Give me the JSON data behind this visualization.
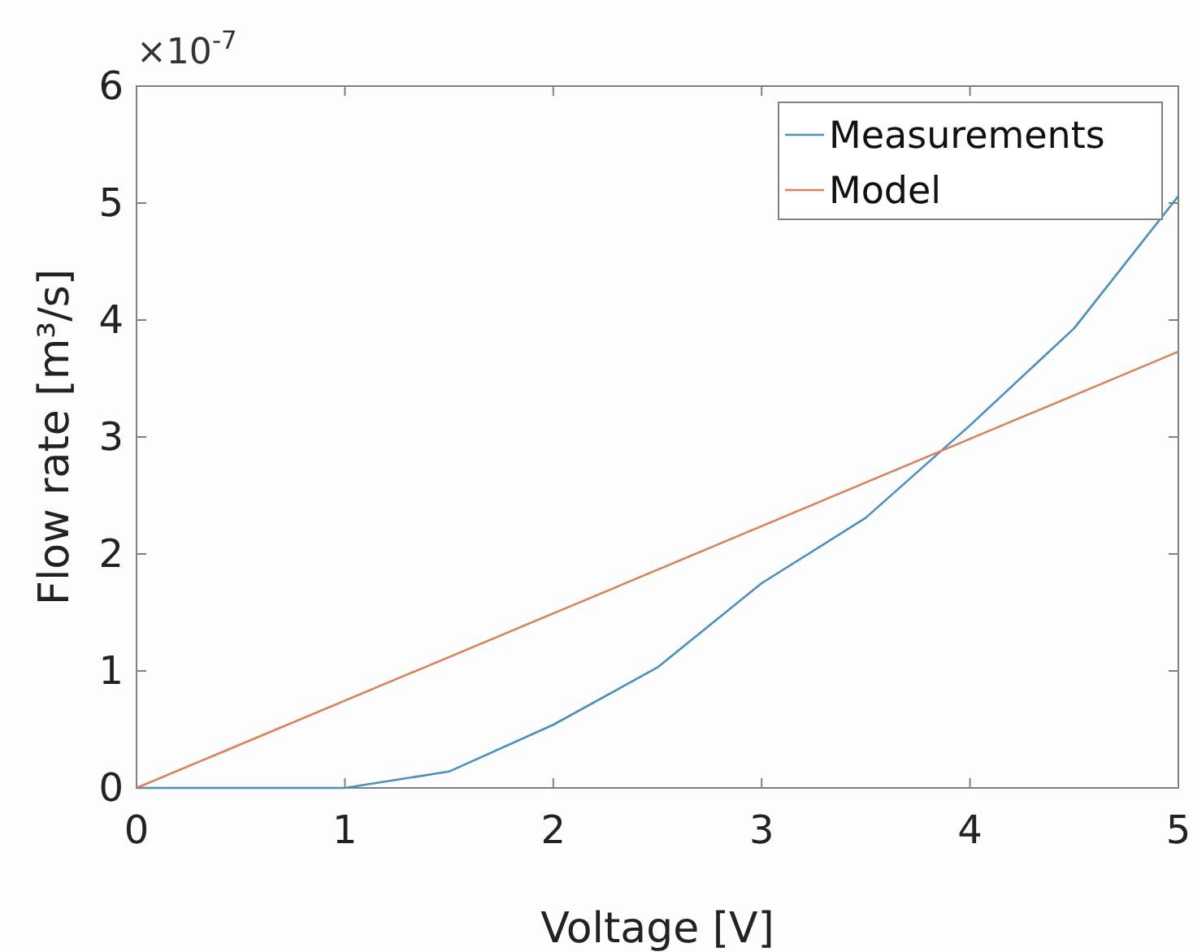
{
  "chart_data": {
    "type": "line",
    "xlabel": "Voltage [V]",
    "ylabel": "Flow rate [m³/s]",
    "annotations": [
      "×10$^{-7}$"
    ],
    "xlim": [
      0,
      5
    ],
    "xticks": [
      0,
      1,
      2,
      3,
      4,
      5
    ],
    "ylim": [
      0,
      6
    ],
    "yticks": [
      0,
      1,
      2,
      3,
      4,
      5,
      6
    ],
    "grid": false,
    "legend": "top right",
    "marker": "none",
    "line_style": "solid",
    "series": [
      {
        "name": "Measurements",
        "color": "#4a90bd",
        "x": [
          0,
          1,
          1.5,
          2,
          2.5,
          3,
          3.5,
          4,
          4.5,
          5
        ],
        "values": [
          0,
          0,
          0.14,
          0.54,
          1.03,
          1.75,
          2.31,
          3.1,
          3.93,
          5.06
        ]
      },
      {
        "name": "Model",
        "color": "#d9825b",
        "x": [
          0,
          5
        ],
        "values": [
          0,
          3.73
        ]
      }
    ]
  }
}
